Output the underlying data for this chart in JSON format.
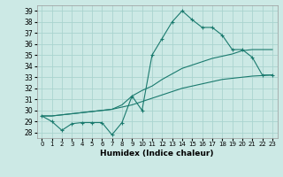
{
  "xlabel": "Humidex (Indice chaleur)",
  "background_color": "#cce9e5",
  "grid_color": "#aad4cf",
  "line_color": "#1a7a6e",
  "xlim": [
    -0.5,
    23.5
  ],
  "ylim": [
    27.5,
    39.5
  ],
  "yticks": [
    28,
    29,
    30,
    31,
    32,
    33,
    34,
    35,
    36,
    37,
    38,
    39
  ],
  "xticks": [
    0,
    1,
    2,
    3,
    4,
    5,
    6,
    7,
    8,
    9,
    10,
    11,
    12,
    13,
    14,
    15,
    16,
    17,
    18,
    19,
    20,
    21,
    22,
    23
  ],
  "line1_x": [
    0,
    1,
    2,
    3,
    4,
    5,
    6,
    7,
    8,
    9,
    10,
    11,
    12,
    13,
    14,
    15,
    16,
    17,
    18,
    19,
    20,
    21,
    22,
    23
  ],
  "line1_y": [
    29.5,
    29.0,
    28.2,
    28.8,
    28.9,
    28.9,
    28.9,
    27.8,
    28.9,
    31.3,
    30.0,
    35.0,
    36.5,
    38.0,
    39.0,
    38.2,
    37.5,
    37.5,
    36.8,
    35.5,
    35.5,
    34.8,
    33.2,
    33.2
  ],
  "line2_x": [
    0,
    1,
    2,
    3,
    4,
    5,
    6,
    7,
    8,
    9,
    10,
    11,
    12,
    13,
    14,
    15,
    16,
    17,
    18,
    19,
    20,
    21,
    22,
    23
  ],
  "line2_y": [
    29.5,
    29.5,
    29.6,
    29.7,
    29.8,
    29.9,
    30.0,
    30.1,
    30.5,
    31.3,
    31.8,
    32.2,
    32.8,
    33.3,
    33.8,
    34.1,
    34.4,
    34.7,
    34.9,
    35.1,
    35.4,
    35.5,
    35.5,
    35.5
  ],
  "line3_x": [
    0,
    1,
    2,
    3,
    4,
    5,
    6,
    7,
    8,
    9,
    10,
    11,
    12,
    13,
    14,
    15,
    16,
    17,
    18,
    19,
    20,
    21,
    22,
    23
  ],
  "line3_y": [
    29.5,
    29.5,
    29.6,
    29.7,
    29.8,
    29.9,
    30.0,
    30.1,
    30.3,
    30.5,
    30.8,
    31.1,
    31.4,
    31.7,
    32.0,
    32.2,
    32.4,
    32.6,
    32.8,
    32.9,
    33.0,
    33.1,
    33.15,
    33.2
  ]
}
